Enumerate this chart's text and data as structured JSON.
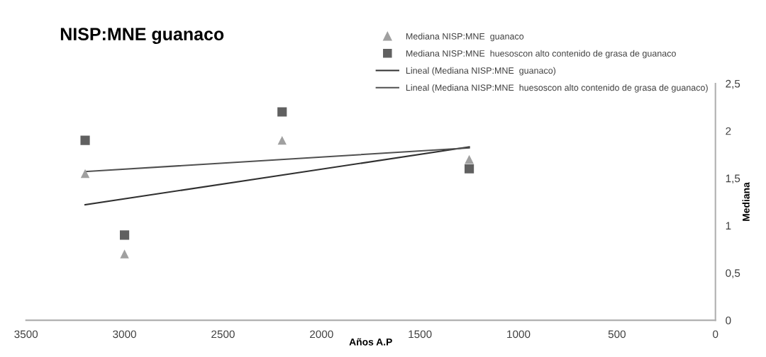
{
  "chart_data": {
    "type": "scatter",
    "title": "NISP:MNE guanaco",
    "xlabel": "Años A.P",
    "ylabel": "Mediana",
    "xlim": [
      3500,
      0
    ],
    "xticks": [
      3500,
      3000,
      2500,
      2000,
      1500,
      1000,
      500,
      0
    ],
    "ylim": [
      0,
      2.5
    ],
    "yticks": [
      0,
      {
        "value": 0.5,
        "label": "0,5"
      },
      1,
      {
        "value": 1.5,
        "label": "1,5"
      },
      2,
      {
        "value": 2.5,
        "label": "2,5"
      }
    ],
    "grid": false,
    "legend": "top right",
    "series": [
      {
        "name": "Mediana NISP:MNE  guanaco",
        "marker": "triangle",
        "color": "#a0a0a0",
        "x": [
          3200,
          3000,
          2200,
          1250
        ],
        "values": [
          1.55,
          0.7,
          1.9,
          1.7
        ]
      },
      {
        "name": "Mediana NISP:MNE  huesoscon alto contenido de grasa de guanaco",
        "marker": "square",
        "color": "#606060",
        "x": [
          3200,
          3000,
          2200,
          1250
        ],
        "values": [
          1.9,
          0.9,
          2.2,
          1.6
        ]
      },
      {
        "name": "Lineal (Mediana NISP:MNE  guanaco)",
        "type": "line",
        "marker": "none",
        "line_style": "solid",
        "color": "#303030",
        "x": [
          3200,
          1250
        ],
        "values": [
          1.22,
          1.83
        ]
      },
      {
        "name": "Lineal (Mediana NISP:MNE  huesoscon alto contenido de grasa de guanaco)",
        "type": "line",
        "marker": "none",
        "line_style": "solid",
        "color": "#505050",
        "x": [
          3200,
          1250
        ],
        "values": [
          1.57,
          1.82
        ]
      }
    ]
  }
}
